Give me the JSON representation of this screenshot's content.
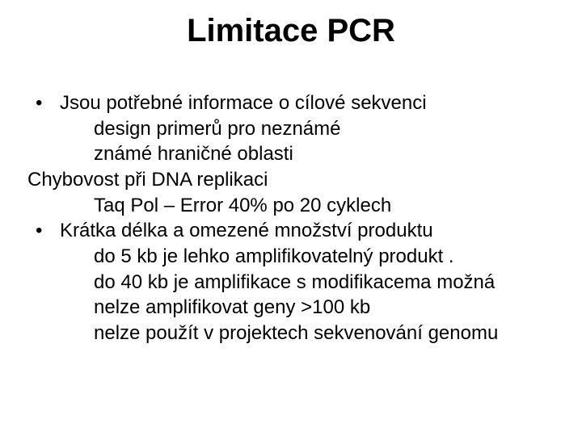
{
  "title_fontsize": 40,
  "body_fontsize": 24,
  "text_color": "#000000",
  "background_color": "#ffffff",
  "font_family": "Arial",
  "title": "Limitace PCR",
  "lines": {
    "b1": "Jsou potřebné informace o cílové sekvenci",
    "l2": "design primerů pro neznámé",
    "l3": "známé hraničné oblasti",
    "l4": "Chybovost při DNA replikaci",
    "l5": "Taq Pol – Error 40% po 20 cyklech",
    "b2": "Krátka délka a omezené množství produktu",
    "l7": "do  5 kb je lehko amplifikovatelný produkt .",
    "l8": "do  40 kb je amplifikace s modifikacema možná",
    "l9": "nelze amplifikovat geny >100 kb",
    "l10": "nelze použít v projektech sekvenování genomu"
  }
}
